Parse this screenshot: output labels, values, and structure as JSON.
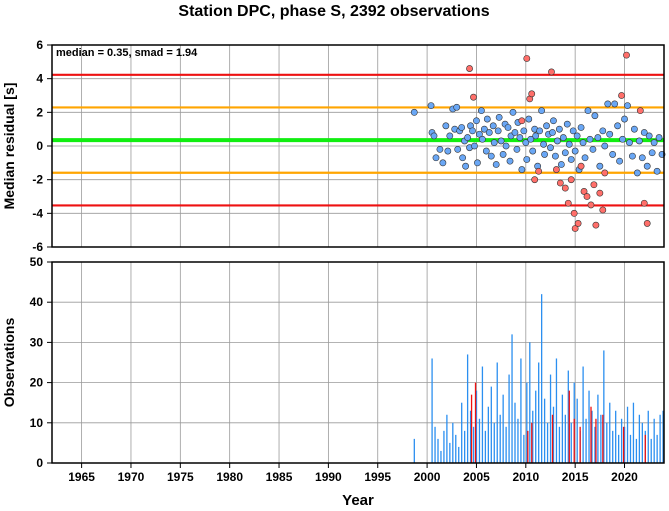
{
  "chart_data": [
    {
      "type": "scatter",
      "title": "Station DPC, phase S, 2392 observations",
      "ylabel": "Median residual [s]",
      "annotation": "median = 0.35, smad = 1.94",
      "xlim": [
        1962,
        2024
      ],
      "ylim": [
        -6,
        6
      ],
      "yticks": [
        -6,
        -4,
        -2,
        0,
        2,
        4,
        6
      ],
      "grid": true,
      "hlines": [
        {
          "y": 4.23,
          "color": "#ee1111"
        },
        {
          "y": 2.29,
          "color": "#ffa500"
        },
        {
          "y": 0.35,
          "color": "#11ee11"
        },
        {
          "y": -1.59,
          "color": "#ffa500"
        },
        {
          "y": -3.53,
          "color": "#ee1111"
        }
      ],
      "series": [
        {
          "color": "#6aa7f5",
          "points": [
            [
              1998.7,
              2.0
            ],
            [
              2000.4,
              2.4
            ],
            [
              2000.5,
              0.8
            ],
            [
              2000.7,
              0.6
            ],
            [
              2000.9,
              -0.7
            ],
            [
              2001.3,
              -0.2
            ],
            [
              2001.6,
              -1.0
            ],
            [
              2001.9,
              1.2
            ],
            [
              2002.1,
              -0.3
            ],
            [
              2002.3,
              0.6
            ],
            [
              2002.6,
              2.2
            ],
            [
              2002.8,
              1.0
            ],
            [
              2003.0,
              2.3
            ],
            [
              2003.1,
              -0.2
            ],
            [
              2003.3,
              0.9
            ],
            [
              2003.5,
              1.1
            ],
            [
              2003.6,
              -0.7
            ],
            [
              2003.8,
              0.3
            ],
            [
              2003.9,
              -1.2
            ],
            [
              2004.1,
              0.5
            ],
            [
              2004.3,
              -0.1
            ],
            [
              2004.4,
              1.2
            ],
            [
              2004.6,
              0.9
            ],
            [
              2004.8,
              0.0
            ],
            [
              2005.0,
              1.5
            ],
            [
              2005.1,
              -1.0
            ],
            [
              2005.3,
              0.7
            ],
            [
              2005.5,
              2.1
            ],
            [
              2005.6,
              0.4
            ],
            [
              2005.8,
              1.0
            ],
            [
              2006.0,
              -0.3
            ],
            [
              2006.1,
              1.6
            ],
            [
              2006.3,
              0.8
            ],
            [
              2006.5,
              -0.6
            ],
            [
              2006.7,
              1.2
            ],
            [
              2006.8,
              0.2
            ],
            [
              2007.0,
              -1.1
            ],
            [
              2007.2,
              0.9
            ],
            [
              2007.3,
              1.7
            ],
            [
              2007.5,
              0.3
            ],
            [
              2007.7,
              -0.5
            ],
            [
              2007.9,
              1.3
            ],
            [
              2008.0,
              0.0
            ],
            [
              2008.2,
              1.1
            ],
            [
              2008.4,
              -0.9
            ],
            [
              2008.5,
              0.6
            ],
            [
              2008.7,
              2.0
            ],
            [
              2008.9,
              0.8
            ],
            [
              2009.1,
              -0.2
            ],
            [
              2009.2,
              1.4
            ],
            [
              2009.4,
              0.5
            ],
            [
              2009.6,
              -1.4
            ],
            [
              2009.8,
              0.9
            ],
            [
              2010.0,
              0.2
            ],
            [
              2010.1,
              -0.8
            ],
            [
              2010.3,
              1.6
            ],
            [
              2010.5,
              0.4
            ],
            [
              2010.7,
              -0.3
            ],
            [
              2010.9,
              1.0
            ],
            [
              2011.0,
              0.6
            ],
            [
              2011.2,
              -1.2
            ],
            [
              2011.4,
              0.9
            ],
            [
              2011.6,
              2.1
            ],
            [
              2011.8,
              0.1
            ],
            [
              2011.9,
              -0.5
            ],
            [
              2012.1,
              1.2
            ],
            [
              2012.3,
              0.7
            ],
            [
              2012.5,
              -0.1
            ],
            [
              2012.7,
              0.8
            ],
            [
              2012.8,
              1.5
            ],
            [
              2013.0,
              -0.6
            ],
            [
              2013.2,
              0.3
            ],
            [
              2013.4,
              1.0
            ],
            [
              2013.6,
              -1.1
            ],
            [
              2013.8,
              0.5
            ],
            [
              2014.0,
              -0.4
            ],
            [
              2014.2,
              1.3
            ],
            [
              2014.4,
              0.1
            ],
            [
              2014.6,
              -0.8
            ],
            [
              2014.8,
              0.9
            ],
            [
              2015.0,
              -0.3
            ],
            [
              2015.2,
              0.6
            ],
            [
              2015.4,
              -1.4
            ],
            [
              2015.6,
              1.1
            ],
            [
              2015.8,
              0.2
            ],
            [
              2016.0,
              -0.7
            ],
            [
              2016.3,
              2.1
            ],
            [
              2016.5,
              0.4
            ],
            [
              2016.8,
              -0.2
            ],
            [
              2017.0,
              1.8
            ],
            [
              2017.3,
              0.5
            ],
            [
              2017.5,
              -1.2
            ],
            [
              2017.8,
              0.9
            ],
            [
              2018.0,
              0.0
            ],
            [
              2018.3,
              2.5
            ],
            [
              2018.5,
              0.7
            ],
            [
              2018.8,
              -0.5
            ],
            [
              2019.0,
              2.5
            ],
            [
              2019.3,
              1.2
            ],
            [
              2019.5,
              -0.9
            ],
            [
              2019.8,
              0.4
            ],
            [
              2020.0,
              1.6
            ],
            [
              2020.3,
              2.4
            ],
            [
              2020.5,
              0.2
            ],
            [
              2020.8,
              -0.6
            ],
            [
              2021.0,
              1.0
            ],
            [
              2021.3,
              -1.6
            ],
            [
              2021.5,
              0.3
            ],
            [
              2021.8,
              -0.7
            ],
            [
              2022.0,
              0.8
            ],
            [
              2022.3,
              -1.2
            ],
            [
              2022.5,
              0.6
            ],
            [
              2022.8,
              -0.4
            ],
            [
              2023.0,
              0.2
            ],
            [
              2023.3,
              -1.5
            ],
            [
              2023.5,
              0.5
            ],
            [
              2023.8,
              -0.5
            ]
          ]
        },
        {
          "color": "#ff6f6a",
          "points": [
            [
              2004.3,
              4.6
            ],
            [
              2004.7,
              2.9
            ],
            [
              2009.6,
              1.5
            ],
            [
              2010.1,
              5.2
            ],
            [
              2010.4,
              2.8
            ],
            [
              2010.6,
              3.1
            ],
            [
              2010.9,
              -2.0
            ],
            [
              2011.3,
              -1.5
            ],
            [
              2012.6,
              4.4
            ],
            [
              2013.1,
              -1.4
            ],
            [
              2013.5,
              -2.2
            ],
            [
              2014.0,
              -2.5
            ],
            [
              2014.3,
              -3.4
            ],
            [
              2014.6,
              -2.0
            ],
            [
              2014.9,
              -4.0
            ],
            [
              2015.0,
              -4.9
            ],
            [
              2015.3,
              -4.6
            ],
            [
              2015.6,
              -1.2
            ],
            [
              2015.9,
              -2.7
            ],
            [
              2016.2,
              -3.0
            ],
            [
              2016.6,
              -3.5
            ],
            [
              2016.9,
              -2.3
            ],
            [
              2017.1,
              -4.7
            ],
            [
              2017.5,
              -2.8
            ],
            [
              2017.8,
              -3.8
            ],
            [
              2018.0,
              -1.6
            ],
            [
              2019.7,
              3.0
            ],
            [
              2020.2,
              5.4
            ],
            [
              2021.6,
              2.1
            ],
            [
              2022.0,
              -3.4
            ],
            [
              2022.3,
              -4.6
            ]
          ]
        }
      ]
    },
    {
      "type": "bar",
      "xlabel": "Year",
      "ylabel": "Observations",
      "xlim": [
        1962,
        2024
      ],
      "ylim": [
        0,
        50
      ],
      "xticks": [
        1965,
        1970,
        1975,
        1980,
        1985,
        1990,
        1995,
        2000,
        2005,
        2010,
        2015,
        2020
      ],
      "yticks": [
        0,
        10,
        20,
        30,
        40,
        50
      ],
      "grid": true,
      "series": [
        {
          "color": "#2b8ff0",
          "x": [
            1998.7,
            2000.5,
            2000.8,
            2001.1,
            2001.4,
            2001.7,
            2002.0,
            2002.3,
            2002.6,
            2002.9,
            2003.2,
            2003.5,
            2003.8,
            2004.1,
            2004.4,
            2004.7,
            2005.0,
            2005.3,
            2005.6,
            2005.9,
            2006.2,
            2006.5,
            2006.8,
            2007.1,
            2007.4,
            2007.7,
            2008.0,
            2008.3,
            2008.6,
            2008.9,
            2009.2,
            2009.5,
            2009.8,
            2010.1,
            2010.4,
            2010.7,
            2011.0,
            2011.3,
            2011.6,
            2011.9,
            2012.2,
            2012.5,
            2012.8,
            2013.1,
            2013.4,
            2013.7,
            2014.0,
            2014.3,
            2014.6,
            2014.9,
            2015.2,
            2015.5,
            2015.8,
            2016.1,
            2016.4,
            2016.7,
            2017.0,
            2017.3,
            2017.6,
            2017.9,
            2018.2,
            2018.5,
            2018.8,
            2019.1,
            2019.4,
            2019.7,
            2020.0,
            2020.3,
            2020.6,
            2020.9,
            2021.2,
            2021.5,
            2021.8,
            2022.1,
            2022.4,
            2022.7,
            2023.0,
            2023.3,
            2023.6,
            2023.9
          ],
          "values": [
            6,
            26,
            9,
            6,
            3,
            8,
            12,
            5,
            10,
            7,
            4,
            15,
            8,
            27,
            13,
            9,
            18,
            11,
            24,
            8,
            14,
            19,
            10,
            25,
            12,
            17,
            9,
            22,
            32,
            15,
            11,
            26,
            7,
            20,
            30,
            13,
            18,
            25,
            42,
            16,
            10,
            22,
            14,
            26,
            9,
            17,
            12,
            23,
            10,
            20,
            16,
            8,
            24,
            11,
            18,
            13,
            9,
            17,
            12,
            28,
            10,
            15,
            8,
            13,
            7,
            11,
            9,
            14,
            7,
            15,
            6,
            12,
            10,
            8,
            13,
            6,
            11,
            7,
            12,
            13
          ]
        },
        {
          "color": "#ee1111",
          "x": [
            2004.5,
            2004.9,
            2010.2,
            2010.6,
            2012.7,
            2014.4,
            2014.9,
            2015.5,
            2016.6,
            2017.1,
            2017.8,
            2019.9,
            2022.1
          ],
          "values": [
            17,
            20,
            8,
            10,
            12,
            18,
            11,
            9,
            14,
            11,
            12,
            9,
            7
          ]
        }
      ]
    }
  ]
}
